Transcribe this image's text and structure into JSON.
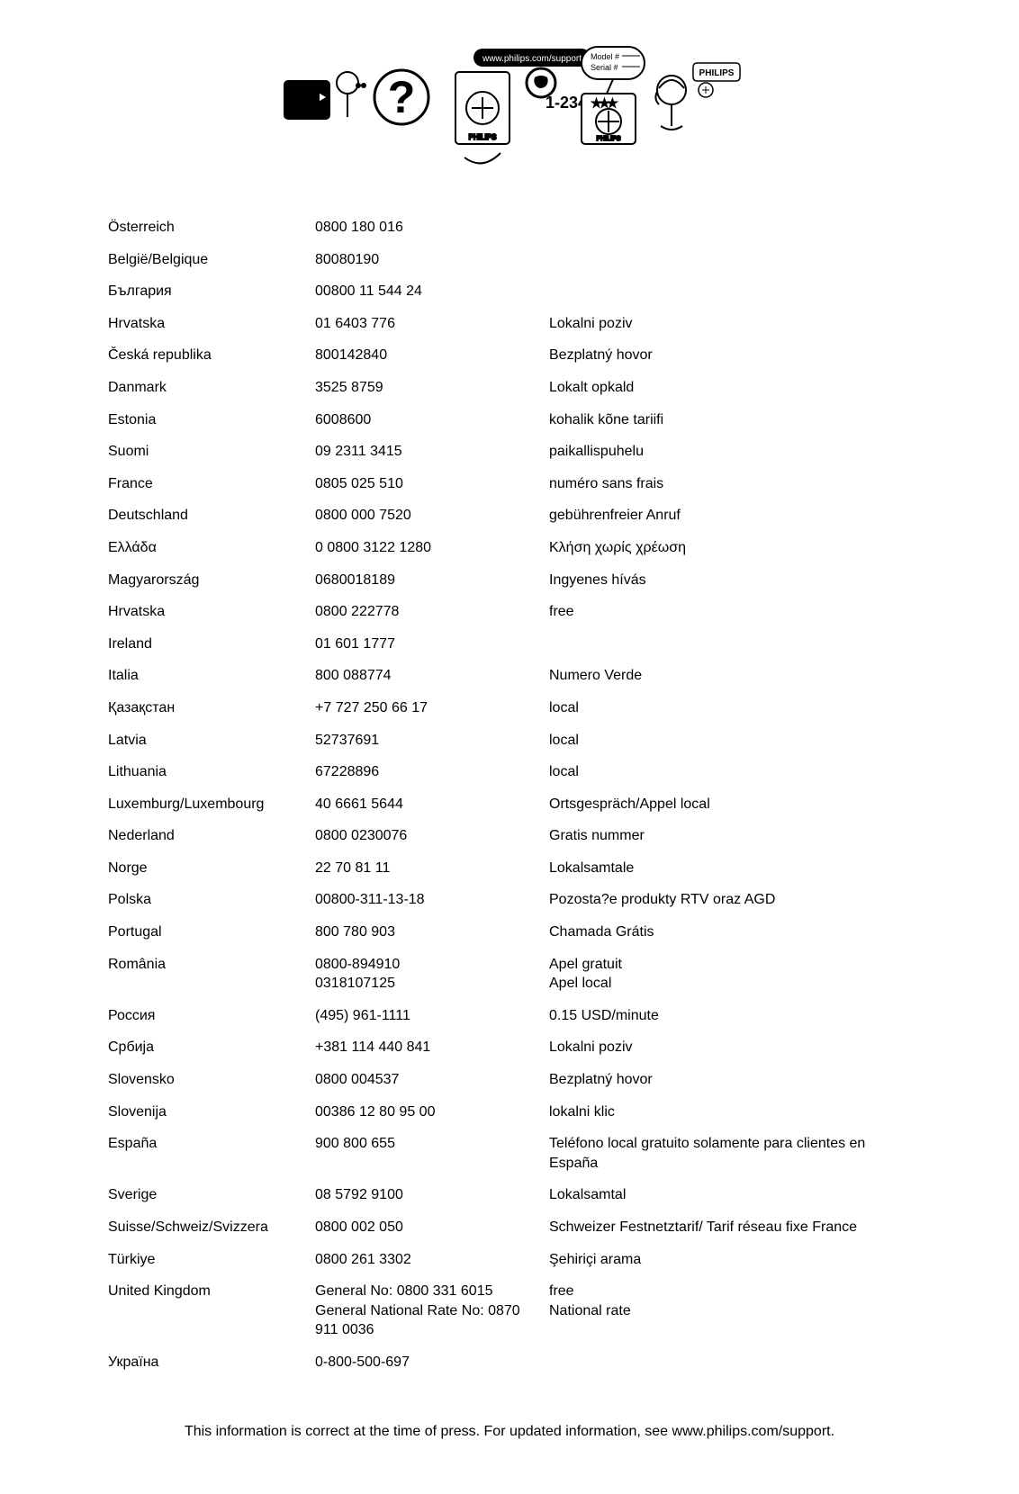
{
  "header": {
    "support_url": "www.philips.com/support",
    "model_label": "Model #",
    "serial_label": "Serial #",
    "phone_display": "1-234",
    "brand": "PHILIPS"
  },
  "rows": [
    {
      "country": "Österreich",
      "phone": "0800 180 016",
      "note": ""
    },
    {
      "country": "België/Belgique",
      "phone": "80080190",
      "note": ""
    },
    {
      "country": "България",
      "phone": "00800 11 544 24",
      "note": ""
    },
    {
      "country": "Hrvatska",
      "phone": "01 6403 776",
      "note": "Lokalni poziv"
    },
    {
      "country": "Česká republika",
      "phone": "800142840",
      "note": "Bezplatný hovor"
    },
    {
      "country": "Danmark",
      "phone": "3525 8759",
      "note": "Lokalt opkald"
    },
    {
      "country": "Estonia",
      "phone": "6008600",
      "note": "kohalik kõne tariifi"
    },
    {
      "country": "Suomi",
      "phone": "09 2311 3415",
      "note": "paikallispuhelu"
    },
    {
      "country": "France",
      "phone": "0805 025 510",
      "note": "numéro sans frais"
    },
    {
      "country": "Deutschland",
      "phone": "0800 000 7520",
      "note": "gebührenfreier Anruf"
    },
    {
      "country": "Ελλάδα",
      "phone": "0 0800 3122 1280",
      "note": "Κλήση χωρίς χρέωση"
    },
    {
      "country": "Magyarország",
      "phone": "0680018189",
      "note": "Ingyenes hívás"
    },
    {
      "country": "Hrvatska",
      "phone": "0800 222778",
      "note": "free"
    },
    {
      "country": "Ireland",
      "phone": "01 601 1777",
      "note": ""
    },
    {
      "country": "Italia",
      "phone": "800 088774",
      "note": "Numero Verde"
    },
    {
      "country": "Қазақстан",
      "phone": "+7 727 250 66 17",
      "note": "local"
    },
    {
      "country": "Latvia",
      "phone": "52737691",
      "note": "local"
    },
    {
      "country": "Lithuania",
      "phone": "67228896",
      "note": "local"
    },
    {
      "country": "Luxemburg/Luxembourg",
      "phone": "40 6661 5644",
      "note": "Ortsgespräch/Appel local"
    },
    {
      "country": "Nederland",
      "phone": "0800 0230076",
      "note": "Gratis nummer"
    },
    {
      "country": "Norge",
      "phone": "22 70 81 11",
      "note": "Lokalsamtale"
    },
    {
      "country": "Polska",
      "phone": "00800-311-13-18",
      "note": "Pozosta?e produkty RTV oraz AGD"
    },
    {
      "country": "Portugal",
      "phone": "800 780 903",
      "note": "Chamada Grátis"
    },
    {
      "country": "România",
      "phone": "0800-894910\n0318107125",
      "note": "Apel gratuit\nApel local"
    },
    {
      "country": "Россия",
      "phone": "(495) 961-1111",
      "note": "0.15 USD/minute"
    },
    {
      "country": "Србија",
      "phone": "+381 114 440 841",
      "note": "Lokalni poziv"
    },
    {
      "country": "Slovensko",
      "phone": "0800 004537",
      "note": "Bezplatný hovor"
    },
    {
      "country": "Slovenija",
      "phone": "00386 12 80 95 00",
      "note": "lokalni klic"
    },
    {
      "country": "España",
      "phone": "900 800 655",
      "note": "Teléfono local gratuito solamente para clientes en España"
    },
    {
      "country": "Sverige",
      "phone": "08 5792 9100",
      "note": "Lokalsamtal"
    },
    {
      "country": "Suisse/Schweiz/Svizzera",
      "phone": "0800 002 050",
      "note": "Schweizer Festnetztarif/ Tarif réseau fixe France"
    },
    {
      "country": "Türkiye",
      "phone": "0800 261 3302",
      "note": "Şehiriçi arama"
    },
    {
      "country": "United Kingdom",
      "phone": "General No: 0800 331 6015\nGeneral National Rate No: 0870 911 0036",
      "note": "free\nNational rate"
    },
    {
      "country": "Україна",
      "phone": "0-800-500-697",
      "note": ""
    }
  ],
  "footer": "This information is correct at the time of press. For updated information, see www.philips.com/support."
}
